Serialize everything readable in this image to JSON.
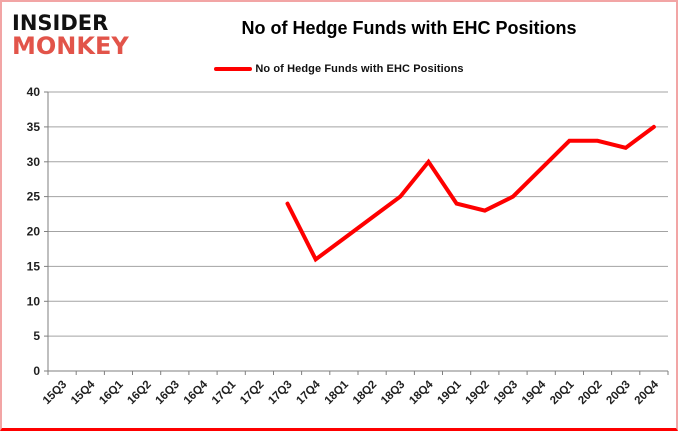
{
  "logo": {
    "line1": "INSIDER",
    "line2": "MONKEY",
    "accent_color": "#e2544a"
  },
  "header": {
    "title": "No of Hedge Funds with EHC Positions"
  },
  "legend": {
    "label": "No of Hedge Funds with EHC Positions",
    "swatch_color": "#fe0000"
  },
  "chart_data": {
    "type": "line",
    "title": "No of Hedge Funds with EHC Positions",
    "categories": [
      "15Q3",
      "15Q4",
      "16Q1",
      "16Q2",
      "16Q3",
      "16Q4",
      "17Q1",
      "17Q2",
      "17Q3",
      "17Q4",
      "18Q1",
      "18Q2",
      "18Q3",
      "18Q4",
      "19Q1",
      "19Q2",
      "19Q3",
      "19Q4",
      "20Q1",
      "20Q2",
      "20Q3",
      "20Q4"
    ],
    "series": [
      {
        "name": "No of Hedge Funds with EHC Positions",
        "color": "#fe0000",
        "values": [
          null,
          null,
          null,
          null,
          null,
          null,
          null,
          null,
          24,
          16,
          19,
          22,
          25,
          30,
          24,
          23,
          25,
          29,
          33,
          33,
          32,
          35
        ]
      }
    ],
    "xlabel": "",
    "ylabel": "",
    "ylim": [
      0,
      40
    ],
    "ytick_interval": 5,
    "grid": "horizontal",
    "legend_position": "top",
    "gridline_color": "#a3a3a3",
    "axis_color": "#7f7f7f"
  }
}
